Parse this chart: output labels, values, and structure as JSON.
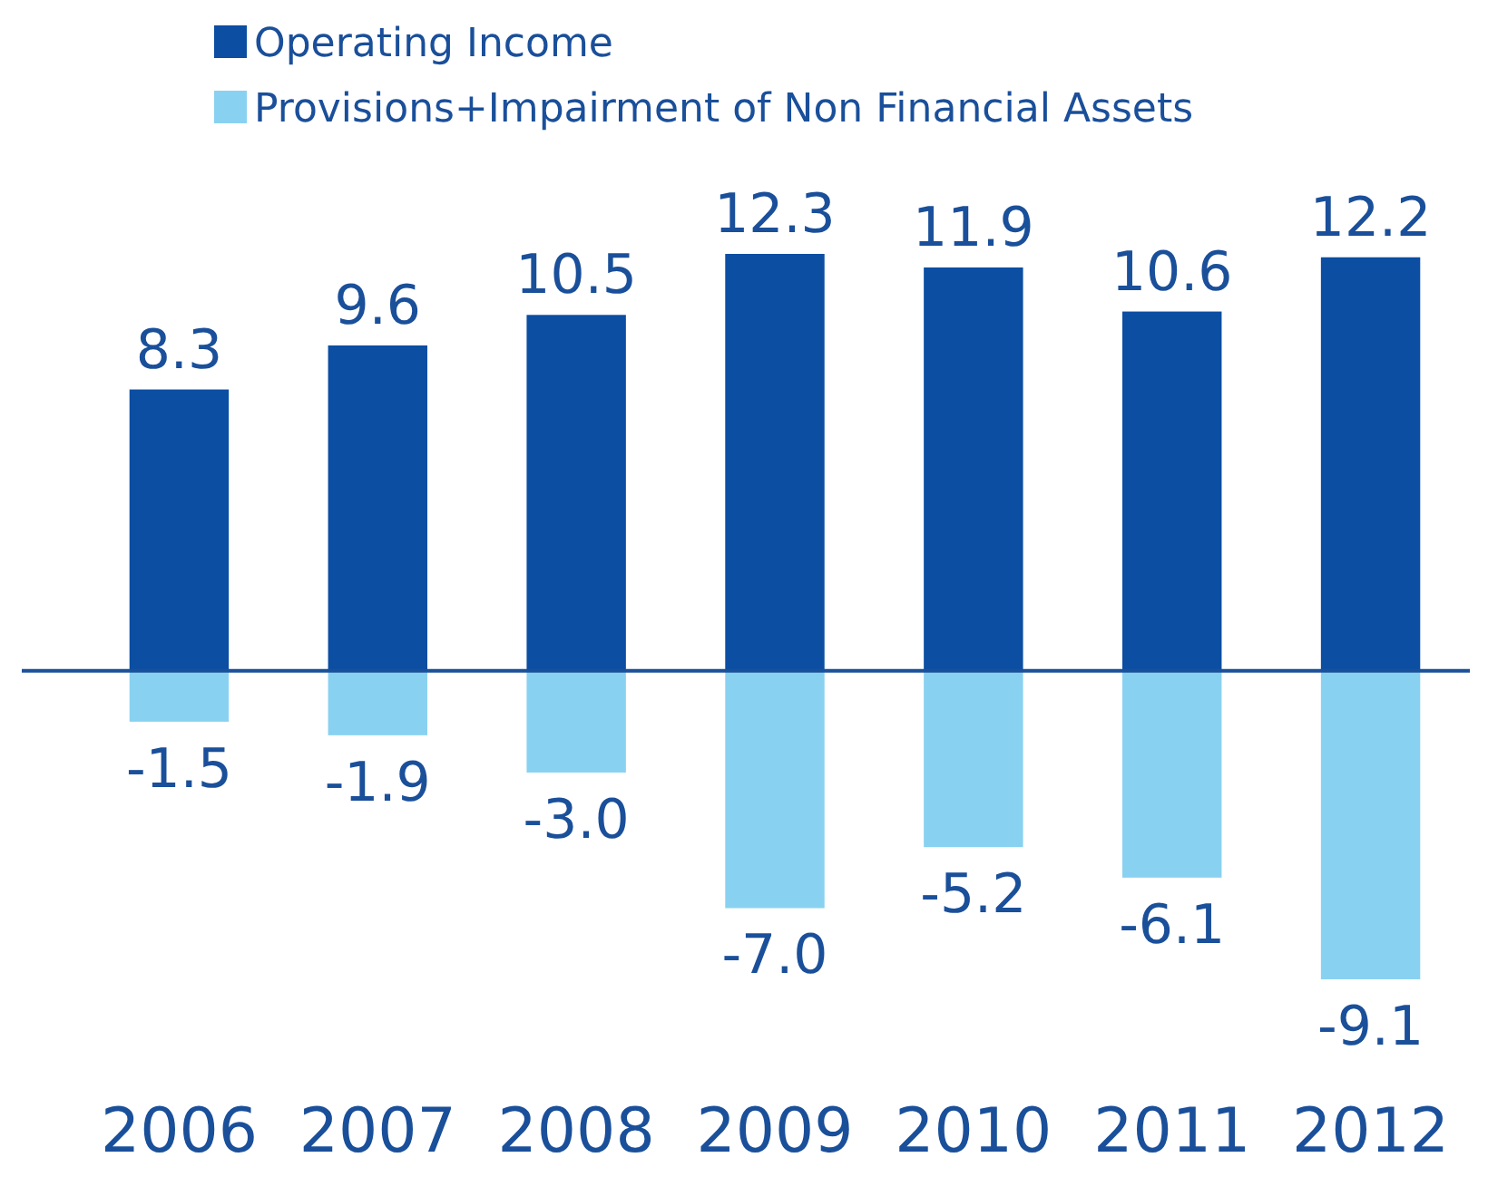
{
  "chart_data": {
    "type": "bar",
    "stacked": true,
    "categories": [
      "2006",
      "2007",
      "2008",
      "2009",
      "2010",
      "2011",
      "2012"
    ],
    "series": [
      {
        "name": "Operating Income",
        "color": "#0b4ea2",
        "values": [
          8.3,
          9.6,
          10.5,
          12.3,
          11.9,
          10.6,
          12.2
        ],
        "value_labels": [
          "8.3",
          "9.6",
          "10.5",
          "12.3",
          "11.9",
          "10.6",
          "12.2"
        ]
      },
      {
        "name": "Provisions+Impairment of Non Financial Assets",
        "color": "#89d1f1",
        "values": [
          -1.5,
          -1.9,
          -3.0,
          -7.0,
          -5.2,
          -6.1,
          -9.1
        ],
        "value_labels": [
          "-1.5",
          "-1.9",
          "-3.0",
          "-7.0",
          "-5.2",
          "-6.1",
          "-9.1"
        ]
      }
    ],
    "ref_lines": [
      {
        "axis": "y",
        "value": 0,
        "color": "#1a4f9a"
      }
    ],
    "legend": "top left"
  }
}
